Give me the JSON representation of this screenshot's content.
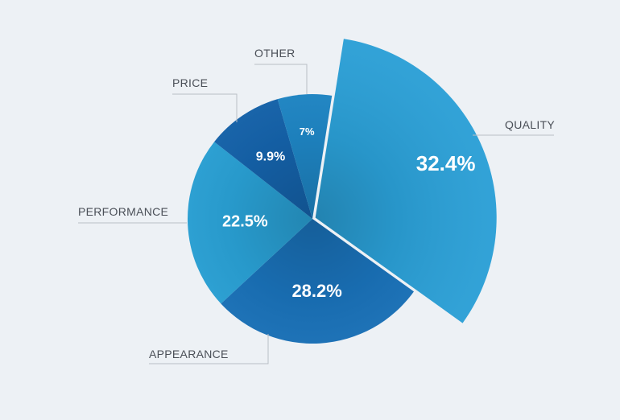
{
  "chart_data": {
    "type": "pie",
    "title": "",
    "legend": "none",
    "slices": [
      {
        "label": "QUALITY",
        "value": 32.4,
        "value_label": "32.4%",
        "color": "#2a9fd6",
        "exploded": true
      },
      {
        "label": "APPEARANCE",
        "value": 28.2,
        "value_label": "28.2%",
        "color": "#1a73bb"
      },
      {
        "label": "PERFORMANCE",
        "value": 22.5,
        "value_label": "22.5%",
        "color": "#2aa3d8"
      },
      {
        "label": "PRICE",
        "value": 9.9,
        "value_label": "9.9%",
        "color": "#1564ad"
      },
      {
        "label": "OTHER",
        "value": 7,
        "value_label": "7%",
        "color": "#1f88c8"
      }
    ]
  }
}
